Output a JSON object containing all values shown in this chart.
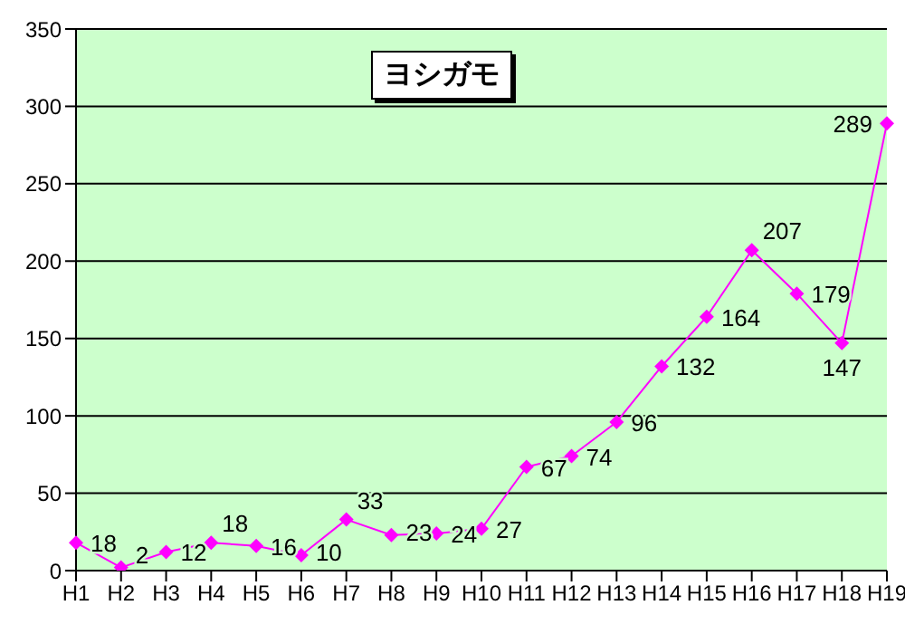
{
  "chart_data": {
    "type": "line",
    "title": "ヨシガモ",
    "categories": [
      "H1",
      "H2",
      "H3",
      "H4",
      "H5",
      "H6",
      "H7",
      "H8",
      "H9",
      "H10",
      "H11",
      "H12",
      "H13",
      "H14",
      "H15",
      "H16",
      "H17",
      "H18",
      "H19"
    ],
    "series": [
      {
        "color": "#ff00ff",
        "values": [
          18,
          2,
          12,
          18,
          16,
          10,
          33,
          23,
          24,
          27,
          67,
          74,
          96,
          132,
          164,
          207,
          179,
          147,
          289
        ]
      }
    ],
    "ylim": [
      0,
      350
    ],
    "yticks": [
      0,
      50,
      100,
      150,
      200,
      250,
      300,
      350
    ],
    "grid": "y",
    "marker": "diamond",
    "line_style": "solid",
    "data_labels": true,
    "legend": false
  }
}
